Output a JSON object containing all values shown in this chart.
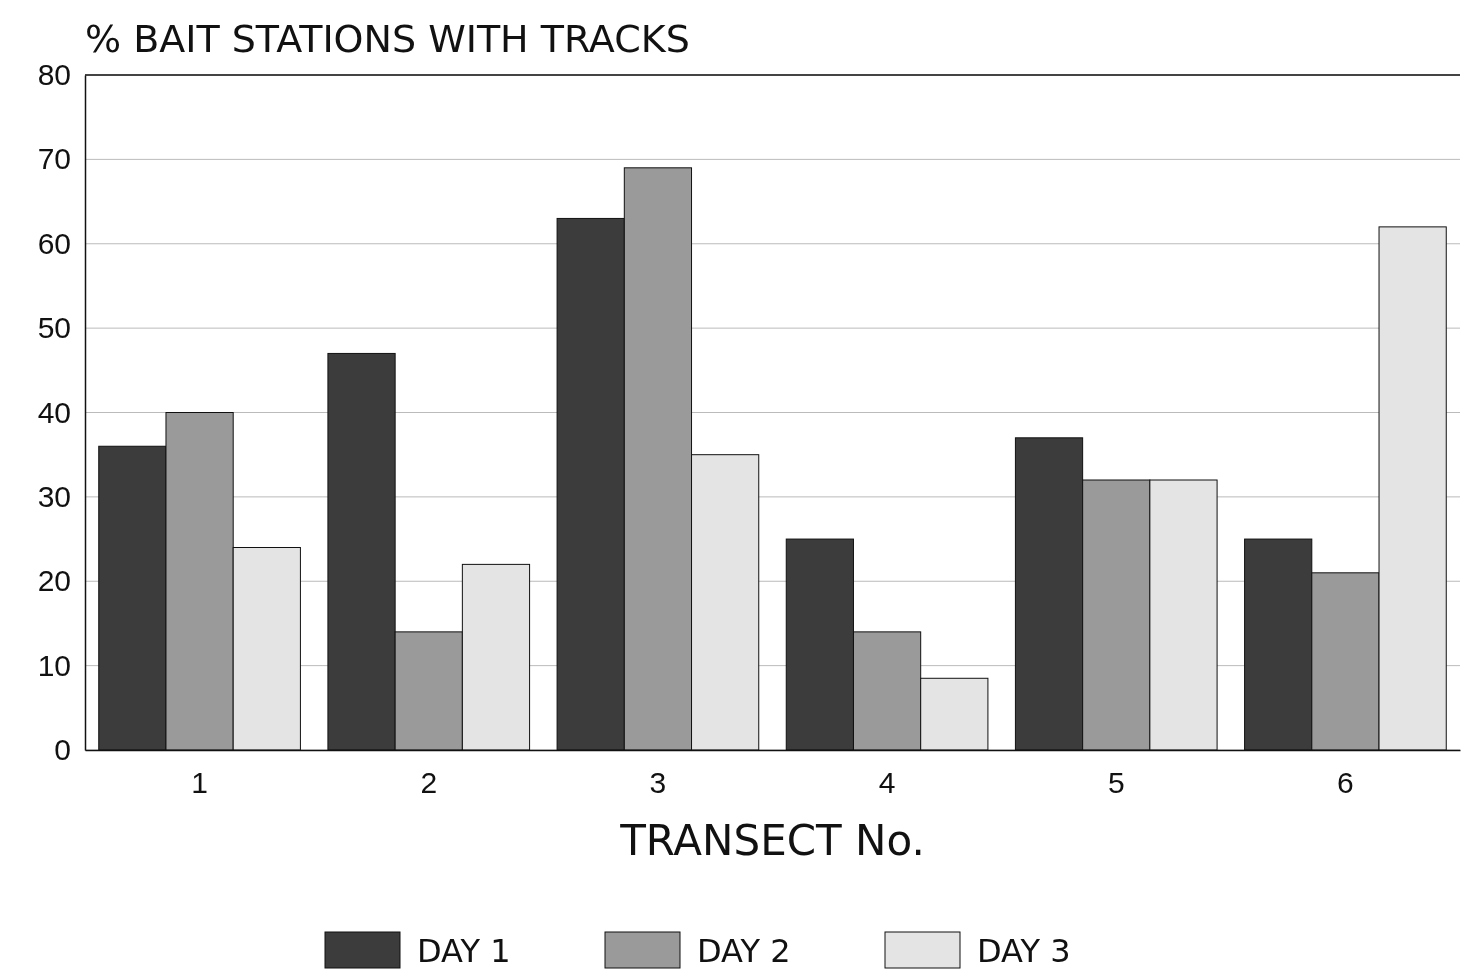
{
  "chart_data": {
    "type": "bar",
    "ylabel": "% BAIT STATIONS WITH TRACKS",
    "xlabel": "TRANSECT No.",
    "categories": [
      "1",
      "2",
      "3",
      "4",
      "5",
      "6"
    ],
    "series": [
      {
        "name": "DAY 1",
        "color": "#3c3c3c",
        "values": [
          36,
          47,
          63,
          25,
          37,
          25
        ]
      },
      {
        "name": "DAY 2",
        "color": "#9a9a9a",
        "values": [
          40,
          14,
          69,
          14,
          32,
          21
        ]
      },
      {
        "name": "DAY 3",
        "color": "#e4e4e4",
        "values": [
          24,
          22,
          35,
          8.5,
          32,
          62
        ]
      }
    ],
    "ylim": [
      0,
      80
    ],
    "yticks": [
      0,
      10,
      20,
      30,
      40,
      50,
      60,
      70,
      80
    ],
    "grid": "y",
    "legend": "bottom"
  }
}
